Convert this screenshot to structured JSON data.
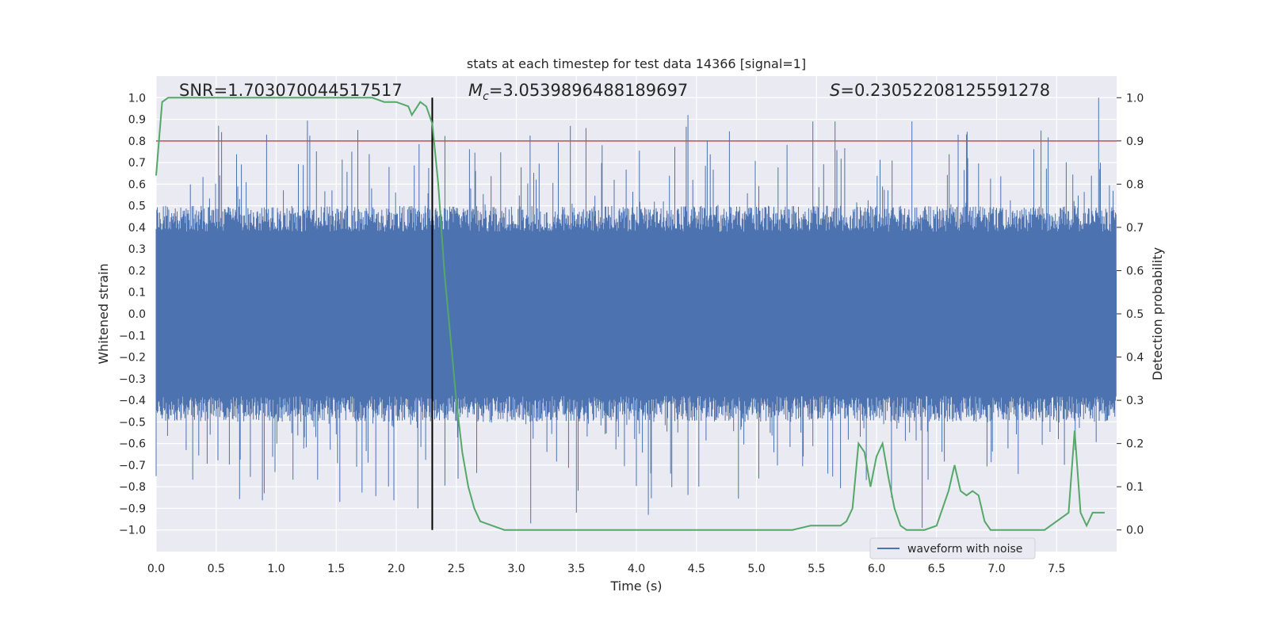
{
  "chart_data": {
    "type": "line",
    "title": "stats at each timestep for test data 14366 [signal=1]",
    "xlabel": "Time (s)",
    "ylabel": "Whitened strain",
    "y2label": "Detection probability",
    "xlim": [
      0,
      8.0
    ],
    "ylim": [
      -1.1,
      1.1
    ],
    "y2lim": [
      -0.05,
      1.05
    ],
    "xticks": [
      0.0,
      0.5,
      1.0,
      1.5,
      2.0,
      2.5,
      3.0,
      3.5,
      4.0,
      4.5,
      5.0,
      5.5,
      6.0,
      6.5,
      7.0,
      7.5
    ],
    "xtick_labels": [
      "0.0",
      "0.5",
      "1.0",
      "1.5",
      "2.0",
      "2.5",
      "3.0",
      "3.5",
      "4.0",
      "4.5",
      "5.0",
      "5.5",
      "6.0",
      "6.5",
      "7.0",
      "7.5"
    ],
    "yticks": [
      1.0,
      0.9,
      0.8,
      0.7,
      0.6,
      0.5,
      0.4,
      0.3,
      0.2,
      0.1,
      0.0,
      -0.1,
      -0.2,
      -0.3,
      -0.4,
      -0.5,
      -0.6,
      -0.7,
      -0.8,
      -0.9,
      -1.0
    ],
    "ytick_labels": [
      "1.0",
      "0.9",
      "0.8",
      "0.7",
      "0.6",
      "0.5",
      "0.4",
      "0.3",
      "0.2",
      "0.1",
      "0.0",
      "−0.1",
      "−0.2",
      "−0.3",
      "−0.4",
      "−0.5",
      "−0.6",
      "−0.7",
      "−0.8",
      "−0.9",
      "−1.0"
    ],
    "y2ticks": [
      1.0,
      0.9,
      0.8,
      0.7,
      0.6,
      0.5,
      0.4,
      0.3,
      0.2,
      0.1,
      0.0
    ],
    "y2tick_labels": [
      "1.0",
      "0.9",
      "0.8",
      "0.7",
      "0.6",
      "0.5",
      "0.4",
      "0.3",
      "0.2",
      "0.1",
      "0.0"
    ],
    "annotations": {
      "snr": "SNR=1.703070044517517",
      "mc_symbol": "M",
      "mc_sub": "c",
      "mc_value": "=3.0539896488189697",
      "s_symbol": "S",
      "s_value": "=0.23052208125591278"
    },
    "threshold_y2": 0.9,
    "threshold_color": "#c44e52",
    "vline_x": 2.3,
    "vline_color": "#000000",
    "waveform_color": "#4c72b0",
    "probability_color": "#55a868",
    "legend": {
      "entries": [
        "waveform with noise"
      ],
      "placement": "lower-right"
    },
    "series": [
      {
        "name": "detection probability",
        "axis": "y2",
        "x": [
          0.0,
          0.05,
          0.1,
          0.2,
          0.3,
          0.5,
          0.8,
          1.0,
          1.2,
          1.5,
          1.8,
          1.9,
          2.0,
          2.1,
          2.13,
          2.2,
          2.25,
          2.3,
          2.35,
          2.4,
          2.45,
          2.5,
          2.55,
          2.6,
          2.65,
          2.7,
          2.8,
          2.9,
          3.0,
          3.1,
          3.2,
          3.3,
          3.5,
          3.7,
          3.9,
          4.05,
          4.2,
          4.4,
          4.6,
          4.8,
          5.0,
          5.2,
          5.3,
          5.45,
          5.55,
          5.6,
          5.65,
          5.7,
          5.75,
          5.8,
          5.85,
          5.9,
          5.95,
          6.0,
          6.05,
          6.1,
          6.15,
          6.2,
          6.25,
          6.3,
          6.35,
          6.4,
          6.5,
          6.6,
          6.65,
          6.7,
          6.75,
          6.8,
          6.85,
          6.9,
          6.95,
          7.0,
          7.05,
          7.1,
          7.2,
          7.4,
          7.6,
          7.65,
          7.7,
          7.75,
          7.8,
          7.85,
          7.9
        ],
        "y": [
          0.82,
          0.99,
          1.0,
          1.0,
          1.0,
          1.0,
          1.0,
          1.0,
          1.0,
          1.0,
          1.0,
          0.99,
          0.99,
          0.98,
          0.96,
          0.99,
          0.98,
          0.94,
          0.8,
          0.6,
          0.45,
          0.3,
          0.18,
          0.1,
          0.05,
          0.02,
          0.01,
          0.0,
          0.0,
          0.0,
          0.0,
          0.0,
          0.0,
          0.0,
          0.0,
          0.0,
          0.0,
          0.0,
          0.0,
          0.0,
          0.0,
          0.0,
          0.0,
          0.01,
          0.01,
          0.01,
          0.01,
          0.01,
          0.02,
          0.05,
          0.2,
          0.18,
          0.1,
          0.17,
          0.2,
          0.12,
          0.05,
          0.01,
          0.0,
          0.0,
          0.0,
          0.0,
          0.01,
          0.09,
          0.15,
          0.09,
          0.08,
          0.09,
          0.08,
          0.02,
          0.0,
          0.0,
          0.0,
          0.0,
          0.0,
          0.0,
          0.04,
          0.23,
          0.04,
          0.01,
          0.04,
          0.04,
          0.04
        ]
      },
      {
        "name": "waveform with noise",
        "axis": "y",
        "envelope": "dense whitened-noise band within roughly ±0.4, spikes up to 1.0 near 7.85 s"
      }
    ]
  }
}
